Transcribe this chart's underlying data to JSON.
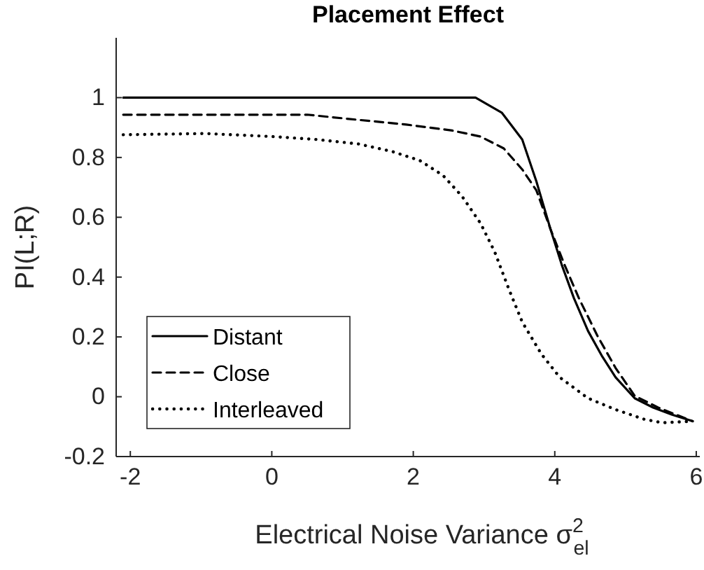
{
  "chart_data": {
    "type": "line",
    "title": "Placement Effect",
    "xlabel": "Electrical Noise Variance σ$^{2}$$_{el}$",
    "ylabel": "PI(L;R)",
    "xlim": [
      -2.2,
      6.05
    ],
    "xticks": [
      -2,
      0,
      2,
      4,
      6
    ],
    "ylim": [
      -0.2,
      1.2
    ],
    "yticks": [
      -0.2,
      0,
      0.2,
      0.4,
      0.6,
      0.8,
      1
    ],
    "grid": false,
    "legend": "bottom left",
    "marker": "none",
    "series": [
      {
        "name": "Distant",
        "color": "#000000",
        "line_style": "solid",
        "x": [
          -2.1,
          0,
          2,
          2.88,
          3.25,
          3.54,
          3.74,
          3.94,
          4.1,
          4.27,
          4.47,
          4.67,
          4.86,
          5.13,
          5.39,
          5.66,
          5.95
        ],
        "values": [
          1,
          1,
          1,
          1,
          0.95,
          0.86,
          0.72,
          0.56,
          0.44,
          0.33,
          0.22,
          0.135,
          0.065,
          -0.005,
          -0.036,
          -0.06,
          -0.082
        ]
      },
      {
        "name": "Close",
        "color": "#000000",
        "line_style": "dashed",
        "x": [
          -2.1,
          0.5,
          1.04,
          1.9,
          2.55,
          2.95,
          3.28,
          3.54,
          3.74,
          3.94,
          4.14,
          4.34,
          4.6,
          4.86,
          5.13,
          5.46,
          5.95
        ],
        "values": [
          0.943,
          0.943,
          0.93,
          0.91,
          0.89,
          0.87,
          0.83,
          0.76,
          0.69,
          0.56,
          0.44,
          0.33,
          0.205,
          0.096,
          0.003,
          -0.036,
          -0.082
        ]
      },
      {
        "name": "Interleaved",
        "color": "#000000",
        "line_style": "dotted",
        "x": [
          -2.1,
          -0.94,
          0,
          0.64,
          1.23,
          1.7,
          2.09,
          2.42,
          2.69,
          2.95,
          3.15,
          3.35,
          3.54,
          3.81,
          4.07,
          4.47,
          4.86,
          5.26,
          5.52,
          5.95
        ],
        "values": [
          0.876,
          0.88,
          0.87,
          0.86,
          0.845,
          0.82,
          0.79,
          0.74,
          0.67,
          0.58,
          0.485,
          0.36,
          0.25,
          0.143,
          0.065,
          -0.005,
          -0.043,
          -0.075,
          -0.087,
          -0.082
        ]
      }
    ]
  }
}
